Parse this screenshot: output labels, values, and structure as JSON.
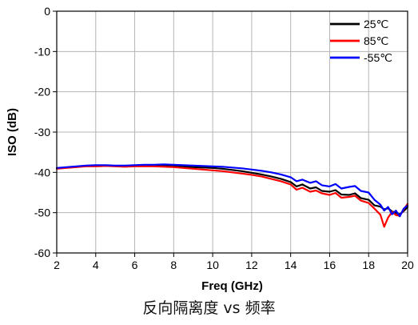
{
  "caption": "反向隔离度 vs 频率",
  "chart_data": {
    "type": "line",
    "xlabel": "Freq (GHz)",
    "ylabel": "ISO (dB)",
    "xlim": [
      2,
      20
    ],
    "ylim": [
      -60,
      0
    ],
    "xticks": [
      2,
      4,
      6,
      8,
      10,
      12,
      14,
      16,
      18,
      20
    ],
    "yticks": [
      0,
      -10,
      -20,
      -30,
      -40,
      -50,
      -60
    ],
    "grid": true,
    "legend_position": "top-right",
    "series": [
      {
        "name": "25℃",
        "color": "#000000",
        "x": [
          2,
          2.5,
          3,
          3.5,
          4,
          4.5,
          5,
          5.5,
          6,
          6.5,
          7,
          7.5,
          8,
          8.5,
          9,
          9.5,
          10,
          10.5,
          11,
          11.5,
          12,
          12.5,
          13,
          13.5,
          14,
          14.3,
          14.6,
          15,
          15.3,
          15.6,
          16,
          16.3,
          16.6,
          17,
          17.3,
          17.6,
          18,
          18.3,
          18.6,
          18.8,
          19,
          19.2,
          19.4,
          19.6,
          19.8,
          20
        ],
        "y": [
          -39,
          -38.8,
          -38.6,
          -38.4,
          -38.3,
          -38.3,
          -38.4,
          -38.5,
          -38.4,
          -38.3,
          -38.3,
          -38.2,
          -38.3,
          -38.5,
          -38.7,
          -38.8,
          -38.9,
          -39.1,
          -39.4,
          -39.7,
          -40.1,
          -40.5,
          -41.0,
          -41.6,
          -42.4,
          -43.5,
          -43.0,
          -44.0,
          -43.7,
          -44.6,
          -44.8,
          -44.4,
          -45.5,
          -45.6,
          -45.2,
          -46.4,
          -46.8,
          -48.2,
          -48.5,
          -49.2,
          -48.9,
          -49.7,
          -50.1,
          -50.4,
          -49.6,
          -48.6
        ]
      },
      {
        "name": "85℃",
        "color": "#ff0000",
        "x": [
          2,
          2.5,
          3,
          3.5,
          4,
          4.5,
          5,
          5.5,
          6,
          6.5,
          7,
          7.5,
          8,
          8.5,
          9,
          9.5,
          10,
          10.5,
          11,
          11.5,
          12,
          12.5,
          13,
          13.5,
          14,
          14.3,
          14.6,
          15,
          15.3,
          15.6,
          16,
          16.3,
          16.6,
          17,
          17.3,
          17.6,
          18,
          18.3,
          18.6,
          18.8,
          19,
          19.2,
          19.4,
          19.6,
          19.8,
          20
        ],
        "y": [
          -39.1,
          -38.9,
          -38.7,
          -38.5,
          -38.5,
          -38.4,
          -38.5,
          -38.6,
          -38.5,
          -38.5,
          -38.5,
          -38.6,
          -38.7,
          -38.9,
          -39.1,
          -39.3,
          -39.5,
          -39.7,
          -40.0,
          -40.3,
          -40.6,
          -41.0,
          -41.6,
          -42.2,
          -43.0,
          -44.3,
          -43.8,
          -44.8,
          -44.5,
          -45.2,
          -45.6,
          -45.1,
          -46.3,
          -46.1,
          -45.8,
          -47.0,
          -47.6,
          -49.0,
          -50.5,
          -53.5,
          -51.2,
          -49.8,
          -50.6,
          -50.8,
          -49.2,
          -47.8
        ]
      },
      {
        "name": "-55℃",
        "color": "#0000ff",
        "x": [
          2,
          2.5,
          3,
          3.5,
          4,
          4.5,
          5,
          5.5,
          6,
          6.5,
          7,
          7.5,
          8,
          8.5,
          9,
          9.5,
          10,
          10.5,
          11,
          11.5,
          12,
          12.5,
          13,
          13.5,
          14,
          14.3,
          14.6,
          15,
          15.3,
          15.6,
          16,
          16.3,
          16.6,
          17,
          17.3,
          17.6,
          18,
          18.3,
          18.6,
          18.8,
          19,
          19.2,
          19.4,
          19.6,
          19.8,
          20
        ],
        "y": [
          -38.9,
          -38.7,
          -38.5,
          -38.3,
          -38.2,
          -38.2,
          -38.3,
          -38.3,
          -38.2,
          -38.1,
          -38.1,
          -38.0,
          -38.1,
          -38.2,
          -38.3,
          -38.4,
          -38.5,
          -38.6,
          -38.8,
          -39.0,
          -39.3,
          -39.6,
          -40.0,
          -40.5,
          -41.2,
          -42.2,
          -41.8,
          -42.6,
          -42.2,
          -43.2,
          -43.5,
          -42.9,
          -44.0,
          -43.6,
          -43.4,
          -44.6,
          -45.0,
          -46.8,
          -48.0,
          -49.5,
          -48.6,
          -50.4,
          -49.5,
          -50.9,
          -49.0,
          -48.2
        ]
      }
    ]
  }
}
